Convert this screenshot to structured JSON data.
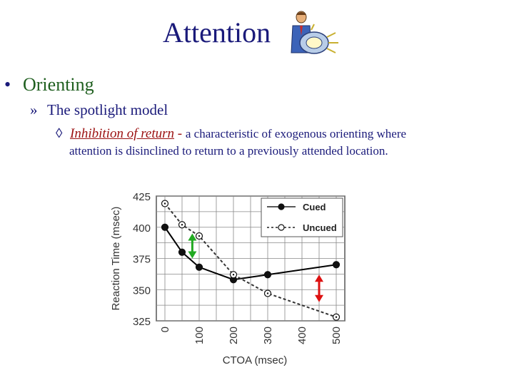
{
  "slide": {
    "title": "Attention",
    "bullet_marker": "•",
    "bullet": "Orienting",
    "sub_marker": "»",
    "sub": "The spotlight model",
    "third_marker": "◊",
    "term": "Inhibition of return",
    "dash": "-",
    "desc_line1": "a characteristic of exogenous orienting where",
    "desc_line2": "attention is disinclined to return to a previously attended location.",
    "clipart_icon": "man-with-spotlight-icon"
  },
  "chart_data": {
    "type": "line",
    "xlabel": "CTOA (msec)",
    "ylabel": "Reaction Time (msec)",
    "xlim": [
      0,
      500
    ],
    "ylim": [
      325,
      425
    ],
    "xticks": [
      0,
      100,
      200,
      300,
      400,
      500
    ],
    "yticks": [
      425,
      400,
      375,
      350,
      325
    ],
    "grid": true,
    "legend_position": "top-right",
    "series": [
      {
        "name": "Cued",
        "style": "solid",
        "marker": "filled-circle",
        "x": [
          0,
          50,
          100,
          200,
          300,
          500
        ],
        "y": [
          400,
          380,
          368,
          358,
          362,
          370
        ]
      },
      {
        "name": "Uncued",
        "style": "dashed",
        "marker": "open-circle",
        "x": [
          0,
          50,
          100,
          200,
          300,
          500
        ],
        "y": [
          419,
          402,
          393,
          362,
          347,
          328
        ]
      }
    ],
    "arrows": [
      {
        "x": 80,
        "y_low": 375,
        "y_high": 395,
        "color": "#22aa22"
      },
      {
        "x": 450,
        "y_low": 340,
        "y_high": 362,
        "color": "#dd1111"
      }
    ],
    "colors": {
      "cued": "#000000",
      "uncued": "#333333",
      "grid": "#888888"
    }
  }
}
